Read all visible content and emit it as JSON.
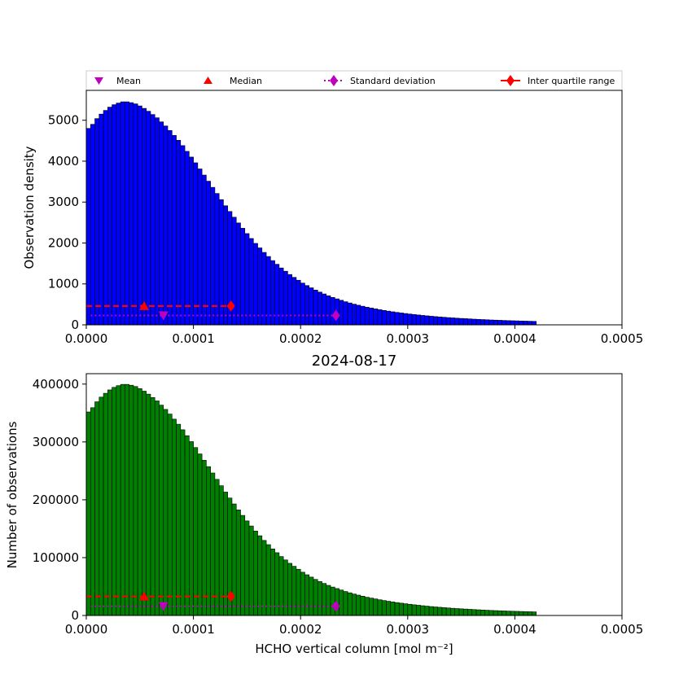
{
  "legend": {
    "mean": "Mean",
    "median": "Median",
    "std": "Standard deviation",
    "iqr": "Inter quartile range"
  },
  "colors": {
    "top_bars": "#0000ff",
    "bottom_bars": "#008000",
    "bar_edge": "#000000",
    "mean": "#bf00bf",
    "median": "#ff0000",
    "std": "#bf00bf",
    "iqr": "#ff0000"
  },
  "chart_data": [
    {
      "type": "bar",
      "name": "density-histogram",
      "title": "",
      "xlabel": "",
      "ylabel": "Observation density",
      "xlim": [
        0,
        0.0005
      ],
      "ylim": [
        0,
        5730
      ],
      "xticks": [
        "0.0000",
        "0.0001",
        "0.0002",
        "0.0003",
        "0.0004",
        "0.0005"
      ],
      "yticks": [
        "0",
        "1000",
        "2000",
        "3000",
        "4000",
        "5000"
      ],
      "stats": {
        "mean": 7.2e-05,
        "median": 5.4e-05,
        "std_low": 4e-06,
        "std_high": 0.000233,
        "iqr_low": 0.0,
        "iqr_high": 0.000135,
        "mean_y": 230,
        "median_y": 460
      }
    },
    {
      "type": "bar",
      "name": "count-histogram",
      "title": "2024-08-17",
      "xlabel": "HCHO vertical column [mol m⁻²]",
      "ylabel": "Number of observations",
      "xlim": [
        0,
        0.0005
      ],
      "ylim": [
        0,
        418000
      ],
      "xticks": [
        "0.0000",
        "0.0001",
        "0.0002",
        "0.0003",
        "0.0004",
        "0.0005"
      ],
      "yticks": [
        "0",
        "100000",
        "200000",
        "300000",
        "400000"
      ],
      "stats": {
        "mean": 7.2e-05,
        "median": 5.4e-05,
        "std_low": 4e-06,
        "std_high": 0.000233,
        "iqr_low": 0.0,
        "iqr_high": 0.000135,
        "mean_y": 16000,
        "median_y": 33000
      }
    }
  ],
  "bins": {
    "width": 4e-06,
    "density": [
      4800,
      4900,
      5040,
      5150,
      5240,
      5320,
      5380,
      5420,
      5450,
      5450,
      5430,
      5400,
      5350,
      5290,
      5220,
      5140,
      5060,
      4960,
      4860,
      4750,
      4630,
      4510,
      4380,
      4240,
      4100,
      3960,
      3810,
      3660,
      3510,
      3360,
      3210,
      3060,
      2910,
      2770,
      2630,
      2490,
      2360,
      2230,
      2110,
      1990,
      1880,
      1770,
      1670,
      1570,
      1480,
      1390,
      1310,
      1230,
      1160,
      1090,
      1020,
      960,
      905,
      850,
      800,
      755,
      710,
      670,
      635,
      600,
      565,
      535,
      505,
      480,
      455,
      430,
      410,
      390,
      370,
      352,
      335,
      319,
      304,
      290,
      277,
      264,
      252,
      241,
      230,
      220,
      210,
      201,
      193,
      185,
      177,
      170,
      163,
      157,
      151,
      145,
      139,
      134,
      129,
      124,
      119,
      115,
      111,
      107,
      103,
      100,
      97,
      94,
      91,
      88,
      85
    ]
  }
}
